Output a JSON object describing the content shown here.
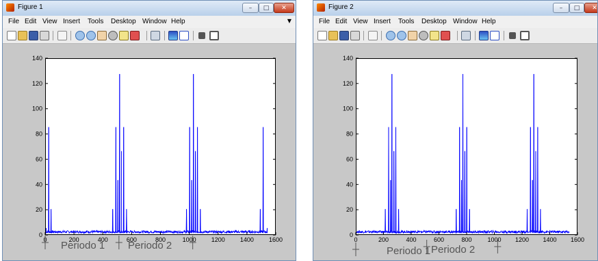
{
  "windows": [
    {
      "title": "Figure 1",
      "menu": [
        "File",
        "Edit",
        "View",
        "Insert",
        "Tools",
        "Desktop",
        "Window",
        "Help"
      ],
      "annotations": [
        "Periodo 1",
        "Periodo 2"
      ]
    },
    {
      "title": "Figure 2",
      "menu": [
        "File",
        "Edit",
        "View",
        "Insert",
        "Tools",
        "Desktop",
        "Window",
        "Help"
      ],
      "annotations": [
        "Periodo 1",
        "Periodo 2"
      ]
    }
  ],
  "window_buttons": {
    "minimize": "–",
    "maximize": "□",
    "close": "✕"
  },
  "colors": {
    "line": "#0000ff",
    "figure_bg": "#c8c8c8",
    "axes_bg": "#ffffff",
    "annotation": "#555555"
  },
  "chart_data": [
    {
      "type": "line",
      "title": "",
      "xlabel": "",
      "ylabel": "",
      "xlim": [
        0,
        1600
      ],
      "ylim": [
        0,
        140
      ],
      "xticks": [
        0,
        200,
        400,
        600,
        800,
        1000,
        1200,
        1400,
        1600
      ],
      "yticks": [
        0,
        20,
        40,
        60,
        80,
        100,
        120,
        140
      ],
      "x_range": [
        0,
        1536
      ],
      "baseline": 2,
      "peaks": [
        {
          "x": 2,
          "y": 6
        },
        {
          "x": 20,
          "y": 86
        },
        {
          "x": 36,
          "y": 21
        },
        {
          "x": 464,
          "y": 21
        },
        {
          "x": 486,
          "y": 86
        },
        {
          "x": 500,
          "y": 44
        },
        {
          "x": 512,
          "y": 128
        },
        {
          "x": 525,
          "y": 67
        },
        {
          "x": 540,
          "y": 86
        },
        {
          "x": 560,
          "y": 21
        },
        {
          "x": 976,
          "y": 21
        },
        {
          "x": 998,
          "y": 86
        },
        {
          "x": 1012,
          "y": 44
        },
        {
          "x": 1024,
          "y": 128
        },
        {
          "x": 1038,
          "y": 67
        },
        {
          "x": 1052,
          "y": 86
        },
        {
          "x": 1072,
          "y": 21
        },
        {
          "x": 1488,
          "y": 21
        },
        {
          "x": 1508,
          "y": 86
        },
        {
          "x": 1536,
          "y": 6
        }
      ]
    },
    {
      "type": "line",
      "title": "",
      "xlabel": "",
      "ylabel": "",
      "xlim": [
        0,
        1600
      ],
      "ylim": [
        0,
        140
      ],
      "xticks": [
        0,
        200,
        400,
        600,
        800,
        1000,
        1200,
        1400,
        1600
      ],
      "yticks": [
        0,
        20,
        40,
        60,
        80,
        100,
        120,
        140
      ],
      "x_range": [
        0,
        1536
      ],
      "baseline": 2,
      "peaks": [
        {
          "x": 208,
          "y": 21
        },
        {
          "x": 232,
          "y": 86
        },
        {
          "x": 246,
          "y": 44
        },
        {
          "x": 256,
          "y": 128
        },
        {
          "x": 270,
          "y": 67
        },
        {
          "x": 284,
          "y": 86
        },
        {
          "x": 304,
          "y": 21
        },
        {
          "x": 720,
          "y": 21
        },
        {
          "x": 744,
          "y": 86
        },
        {
          "x": 758,
          "y": 44
        },
        {
          "x": 768,
          "y": 128
        },
        {
          "x": 782,
          "y": 67
        },
        {
          "x": 796,
          "y": 86
        },
        {
          "x": 816,
          "y": 21
        },
        {
          "x": 1232,
          "y": 21
        },
        {
          "x": 1256,
          "y": 86
        },
        {
          "x": 1270,
          "y": 44
        },
        {
          "x": 1280,
          "y": 128
        },
        {
          "x": 1294,
          "y": 67
        },
        {
          "x": 1308,
          "y": 86
        },
        {
          "x": 1328,
          "y": 21
        }
      ]
    }
  ]
}
